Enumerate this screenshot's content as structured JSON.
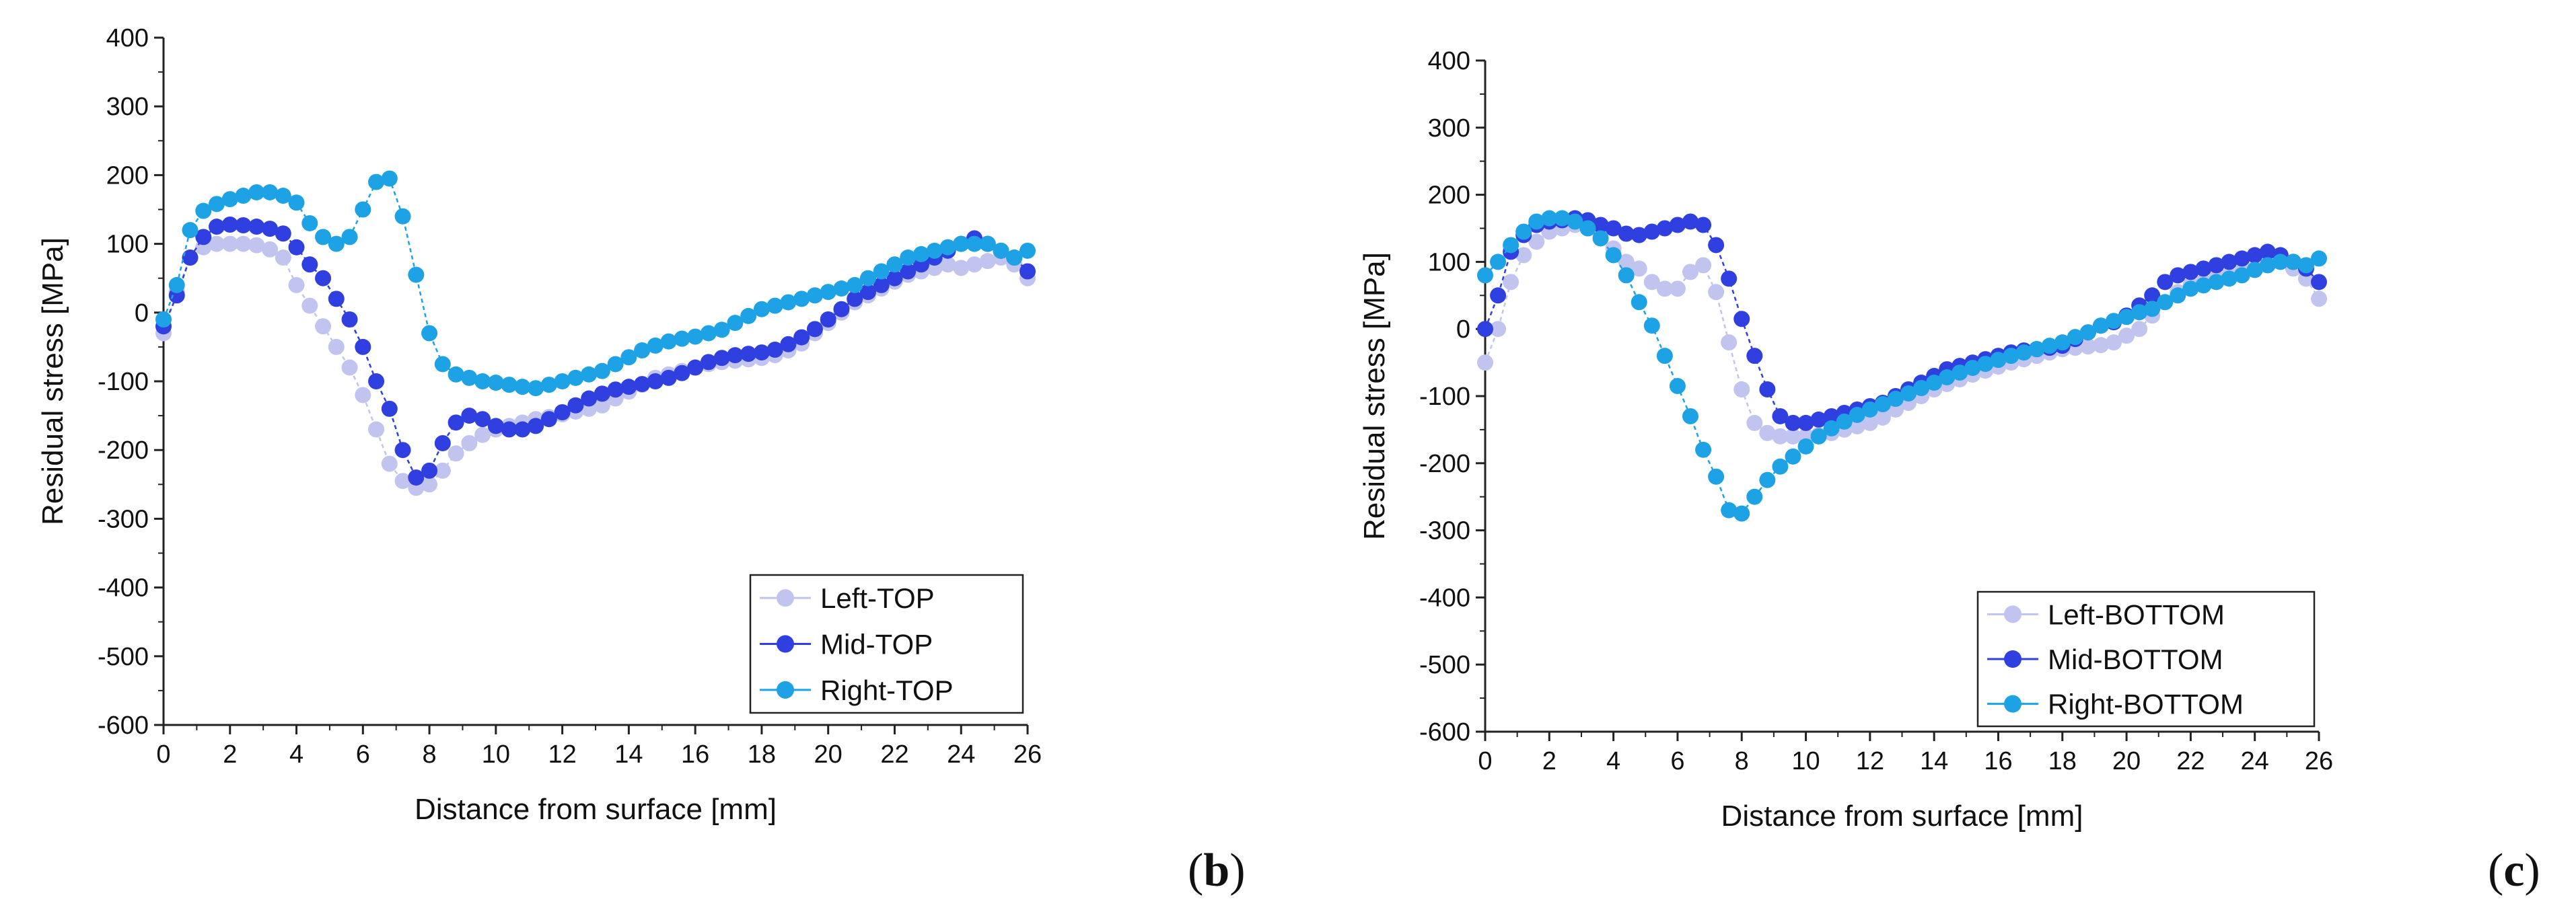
{
  "chart_data": [
    {
      "type": "scatter",
      "panel_label": "b",
      "xlabel": "Distance from surface [mm]",
      "ylabel": "Residual stress [MPa]",
      "xlim": [
        0,
        26
      ],
      "ylim": [
        -600,
        400
      ],
      "xticks": [
        0,
        2,
        4,
        6,
        8,
        10,
        12,
        14,
        16,
        18,
        20,
        22,
        24,
        26
      ],
      "yticks": [
        -600,
        -500,
        -400,
        -300,
        -200,
        -100,
        0,
        100,
        200,
        300,
        400
      ],
      "grid": false,
      "legend_position": "bottom-right",
      "series": [
        {
          "name": "Left-TOP",
          "color": "#c0c4ee",
          "x": [
            0,
            0.4,
            0.8,
            1.2,
            1.6,
            2.0,
            2.4,
            2.8,
            3.2,
            3.6,
            4.0,
            4.4,
            4.8,
            5.2,
            5.6,
            6.0,
            6.4,
            6.8,
            7.2,
            7.6,
            8.0,
            8.4,
            8.8,
            9.2,
            9.6,
            10.0,
            10.4,
            10.8,
            11.2,
            11.6,
            12.0,
            12.4,
            12.8,
            13.2,
            13.6,
            14.0,
            14.4,
            14.8,
            15.2,
            15.6,
            16.0,
            16.4,
            16.8,
            17.2,
            17.6,
            18.0,
            18.4,
            18.8,
            19.2,
            19.6,
            20.0,
            20.4,
            20.8,
            21.2,
            21.6,
            22.0,
            22.4,
            22.8,
            23.2,
            23.6,
            24.0,
            24.4,
            24.8,
            25.2,
            25.6,
            26.0
          ],
          "y": [
            -30,
            30,
            80,
            95,
            100,
            100,
            100,
            98,
            92,
            80,
            40,
            10,
            -20,
            -50,
            -80,
            -120,
            -170,
            -220,
            -245,
            -255,
            -250,
            -230,
            -205,
            -190,
            -178,
            -170,
            -165,
            -160,
            -155,
            -152,
            -148,
            -144,
            -140,
            -135,
            -125,
            -115,
            -105,
            -95,
            -90,
            -85,
            -80,
            -75,
            -72,
            -70,
            -68,
            -66,
            -62,
            -55,
            -45,
            -30,
            -15,
            0,
            15,
            25,
            35,
            45,
            55,
            60,
            65,
            70,
            65,
            70,
            75,
            80,
            70,
            50
          ]
        },
        {
          "name": "Mid-TOP",
          "color": "#2f3fe0",
          "x": [
            0,
            0.4,
            0.8,
            1.2,
            1.6,
            2.0,
            2.4,
            2.8,
            3.2,
            3.6,
            4.0,
            4.4,
            4.8,
            5.2,
            5.6,
            6.0,
            6.4,
            6.8,
            7.2,
            7.6,
            8.0,
            8.4,
            8.8,
            9.2,
            9.6,
            10.0,
            10.4,
            10.8,
            11.2,
            11.6,
            12.0,
            12.4,
            12.8,
            13.2,
            13.6,
            14.0,
            14.4,
            14.8,
            15.2,
            15.6,
            16.0,
            16.4,
            16.8,
            17.2,
            17.6,
            18.0,
            18.4,
            18.8,
            19.2,
            19.6,
            20.0,
            20.4,
            20.8,
            21.2,
            21.6,
            22.0,
            22.4,
            22.8,
            23.2,
            23.6,
            24.0,
            24.4,
            24.8,
            25.2,
            25.6,
            26.0
          ],
          "y": [
            -20,
            25,
            80,
            110,
            125,
            128,
            127,
            125,
            122,
            115,
            95,
            70,
            50,
            20,
            -10,
            -50,
            -100,
            -140,
            -200,
            -240,
            -230,
            -190,
            -160,
            -150,
            -155,
            -165,
            -170,
            -170,
            -165,
            -155,
            -145,
            -135,
            -125,
            -118,
            -112,
            -108,
            -104,
            -100,
            -95,
            -88,
            -80,
            -72,
            -66,
            -62,
            -60,
            -58,
            -54,
            -46,
            -36,
            -24,
            -10,
            5,
            20,
            30,
            40,
            50,
            60,
            70,
            80,
            90,
            100,
            108,
            100,
            90,
            80,
            60
          ]
        },
        {
          "name": "Right-TOP",
          "color": "#1ea2e6",
          "x": [
            0,
            0.4,
            0.8,
            1.2,
            1.6,
            2.0,
            2.4,
            2.8,
            3.2,
            3.6,
            4.0,
            4.4,
            4.8,
            5.2,
            5.6,
            6.0,
            6.4,
            6.8,
            7.2,
            7.6,
            8.0,
            8.4,
            8.8,
            9.2,
            9.6,
            10.0,
            10.4,
            10.8,
            11.2,
            11.6,
            12.0,
            12.4,
            12.8,
            13.2,
            13.6,
            14.0,
            14.4,
            14.8,
            15.2,
            15.6,
            16.0,
            16.4,
            16.8,
            17.2,
            17.6,
            18.0,
            18.4,
            18.8,
            19.2,
            19.6,
            20.0,
            20.4,
            20.8,
            21.2,
            21.6,
            22.0,
            22.4,
            22.8,
            23.2,
            23.6,
            24.0,
            24.4,
            24.8,
            25.2,
            25.6,
            26.0
          ],
          "y": [
            -10,
            40,
            120,
            148,
            158,
            165,
            170,
            175,
            175,
            170,
            160,
            130,
            110,
            100,
            110,
            150,
            190,
            195,
            140,
            55,
            -30,
            -75,
            -90,
            -95,
            -100,
            -102,
            -105,
            -108,
            -110,
            -105,
            -100,
            -95,
            -90,
            -85,
            -75,
            -65,
            -55,
            -48,
            -42,
            -38,
            -35,
            -30,
            -25,
            -15,
            -5,
            5,
            10,
            15,
            20,
            25,
            30,
            35,
            40,
            50,
            60,
            70,
            80,
            85,
            90,
            95,
            100,
            100,
            100,
            90,
            80,
            90
          ]
        }
      ]
    },
    {
      "type": "scatter",
      "panel_label": "c",
      "xlabel": "Distance from surface [mm]",
      "ylabel": "Residual stress [MPa]",
      "xlim": [
        0,
        26
      ],
      "ylim": [
        -600,
        400
      ],
      "xticks": [
        0,
        2,
        4,
        6,
        8,
        10,
        12,
        14,
        16,
        18,
        20,
        22,
        24,
        26
      ],
      "yticks": [
        -600,
        -500,
        -400,
        -300,
        -200,
        -100,
        0,
        100,
        200,
        300,
        400
      ],
      "grid": false,
      "legend_position": "bottom-right",
      "series": [
        {
          "name": "Left-BOTTOM",
          "color": "#c0c4ee",
          "x": [
            0,
            0.4,
            0.8,
            1.2,
            1.6,
            2.0,
            2.4,
            2.8,
            3.2,
            3.6,
            4.0,
            4.4,
            4.8,
            5.2,
            5.6,
            6.0,
            6.4,
            6.8,
            7.2,
            7.6,
            8.0,
            8.4,
            8.8,
            9.2,
            9.6,
            10.0,
            10.4,
            10.8,
            11.2,
            11.6,
            12.0,
            12.4,
            12.8,
            13.2,
            13.6,
            14.0,
            14.4,
            14.8,
            15.2,
            15.6,
            16.0,
            16.4,
            16.8,
            17.2,
            17.6,
            18.0,
            18.4,
            18.8,
            19.2,
            19.6,
            20.0,
            20.4,
            20.8,
            21.2,
            21.6,
            22.0,
            22.4,
            22.8,
            23.2,
            23.6,
            24.0,
            24.4,
            24.8,
            25.2,
            25.6,
            26.0
          ],
          "y": [
            -50,
            0,
            70,
            110,
            130,
            145,
            150,
            155,
            150,
            140,
            120,
            100,
            90,
            70,
            60,
            60,
            85,
            95,
            55,
            -20,
            -90,
            -140,
            -155,
            -160,
            -160,
            -160,
            -158,
            -155,
            -150,
            -145,
            -140,
            -132,
            -120,
            -110,
            -100,
            -90,
            -82,
            -75,
            -68,
            -62,
            -56,
            -50,
            -45,
            -40,
            -35,
            -30,
            -28,
            -26,
            -24,
            -20,
            -10,
            0,
            20,
            40,
            55,
            65,
            70,
            75,
            80,
            85,
            90,
            95,
            100,
            90,
            75,
            45
          ]
        },
        {
          "name": "Mid-BOTTOM",
          "color": "#2f3fe0",
          "x": [
            0,
            0.4,
            0.8,
            1.2,
            1.6,
            2.0,
            2.4,
            2.8,
            3.2,
            3.6,
            4.0,
            4.4,
            4.8,
            5.2,
            5.6,
            6.0,
            6.4,
            6.8,
            7.2,
            7.6,
            8.0,
            8.4,
            8.8,
            9.2,
            9.6,
            10.0,
            10.4,
            10.8,
            11.2,
            11.6,
            12.0,
            12.4,
            12.8,
            13.2,
            13.6,
            14.0,
            14.4,
            14.8,
            15.2,
            15.6,
            16.0,
            16.4,
            16.8,
            17.2,
            17.6,
            18.0,
            18.4,
            18.8,
            19.2,
            19.6,
            20.0,
            20.4,
            20.8,
            21.2,
            21.6,
            22.0,
            22.4,
            22.8,
            23.2,
            23.6,
            24.0,
            24.4,
            24.8,
            25.2,
            25.6,
            26.0
          ],
          "y": [
            0,
            50,
            115,
            140,
            155,
            160,
            162,
            165,
            162,
            155,
            150,
            142,
            140,
            145,
            150,
            155,
            160,
            155,
            125,
            75,
            15,
            -40,
            -90,
            -130,
            -140,
            -140,
            -135,
            -130,
            -125,
            -120,
            -115,
            -110,
            -100,
            -90,
            -80,
            -70,
            -60,
            -55,
            -50,
            -45,
            -40,
            -35,
            -32,
            -30,
            -28,
            -25,
            -15,
            -5,
            5,
            10,
            20,
            35,
            50,
            70,
            80,
            85,
            90,
            95,
            100,
            105,
            110,
            115,
            110,
            100,
            90,
            70
          ]
        },
        {
          "name": "Right-BOTTOM",
          "color": "#1ea2e6",
          "x": [
            0,
            0.4,
            0.8,
            1.2,
            1.6,
            2.0,
            2.4,
            2.8,
            3.2,
            3.6,
            4.0,
            4.4,
            4.8,
            5.2,
            5.6,
            6.0,
            6.4,
            6.8,
            7.2,
            7.6,
            8.0,
            8.4,
            8.8,
            9.2,
            9.6,
            10.0,
            10.4,
            10.8,
            11.2,
            11.6,
            12.0,
            12.4,
            12.8,
            13.2,
            13.6,
            14.0,
            14.4,
            14.8,
            15.2,
            15.6,
            16.0,
            16.4,
            16.8,
            17.2,
            17.6,
            18.0,
            18.4,
            18.8,
            19.2,
            19.6,
            20.0,
            20.4,
            20.8,
            21.2,
            21.6,
            22.0,
            22.4,
            22.8,
            23.2,
            23.6,
            24.0,
            24.4,
            24.8,
            25.2,
            25.6,
            26.0
          ],
          "y": [
            80,
            100,
            125,
            145,
            160,
            165,
            165,
            160,
            150,
            135,
            110,
            80,
            40,
            5,
            -40,
            -85,
            -130,
            -180,
            -220,
            -270,
            -275,
            -250,
            -225,
            -205,
            -190,
            -175,
            -160,
            -148,
            -138,
            -128,
            -120,
            -112,
            -104,
            -96,
            -88,
            -80,
            -72,
            -65,
            -58,
            -52,
            -46,
            -40,
            -35,
            -30,
            -25,
            -20,
            -12,
            -5,
            5,
            12,
            18,
            25,
            30,
            40,
            50,
            60,
            65,
            70,
            75,
            80,
            88,
            95,
            100,
            100,
            95,
            105
          ]
        }
      ]
    }
  ]
}
